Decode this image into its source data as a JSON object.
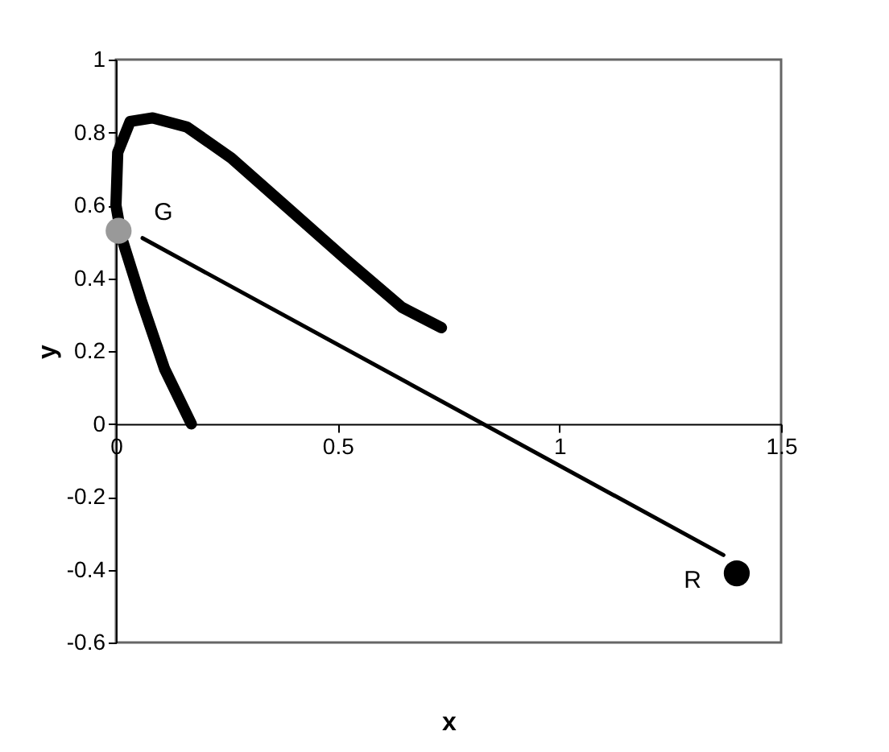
{
  "chart_data": {
    "type": "line",
    "xlabel": "x",
    "ylabel": "y",
    "xlim": [
      0,
      1.5
    ],
    "ylim": [
      -0.6,
      1
    ],
    "xticks": [
      0,
      0.5,
      1,
      1.5
    ],
    "yticks": [
      -0.6,
      -0.4,
      -0.2,
      0,
      0.2,
      0.4,
      0.6,
      0.8,
      1
    ],
    "grid": false,
    "line_style": "solid",
    "series": [
      {
        "color": "#000000",
        "x": [
          0.17,
          0.11,
          0.057,
          0.013,
          0,
          0.004,
          0.032,
          0.083,
          0.16,
          0.26,
          0.39,
          0.52,
          0.645,
          0.734
        ],
        "values": [
          0,
          0.15,
          0.34,
          0.51,
          0.6,
          0.745,
          0.83,
          0.84,
          0.815,
          0.73,
          0.59,
          0.45,
          0.32,
          0.264
        ]
      },
      {
        "color": "#000000",
        "x": [
          0.06,
          1.37
        ],
        "values": [
          0.51,
          -0.36
        ]
      },
      {
        "type": "scatter",
        "name": "G",
        "marker": "circle",
        "color": "#999999",
        "x": [
          0.006
        ],
        "values": [
          0.53
        ]
      },
      {
        "type": "scatter",
        "name": "R",
        "marker": "circle",
        "color": "#000000",
        "x": [
          1.4
        ],
        "values": [
          -0.41
        ]
      }
    ]
  }
}
